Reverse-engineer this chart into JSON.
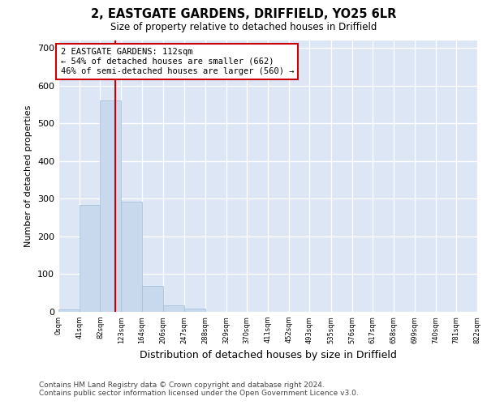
{
  "title": "2, EASTGATE GARDENS, DRIFFIELD, YO25 6LR",
  "subtitle": "Size of property relative to detached houses in Driffield",
  "xlabel": "Distribution of detached houses by size in Driffield",
  "ylabel": "Number of detached properties",
  "bar_edges": [
    0,
    41,
    82,
    123,
    164,
    206,
    247,
    288,
    329,
    370,
    411,
    452,
    493,
    535,
    576,
    617,
    658,
    699,
    740,
    781,
    822
  ],
  "bar_heights": [
    7,
    283,
    562,
    293,
    68,
    17,
    8,
    0,
    0,
    0,
    0,
    0,
    0,
    0,
    0,
    0,
    0,
    0,
    0,
    0
  ],
  "bar_color": "#c9d9ed",
  "bar_edgecolor": "#a0bcd8",
  "bg_color": "#dce6f5",
  "grid_color": "#ffffff",
  "vline_x": 112,
  "vline_color": "#cc0000",
  "annotation_text": "2 EASTGATE GARDENS: 112sqm\n← 54% of detached houses are smaller (662)\n46% of semi-detached houses are larger (560) →",
  "annotation_box_color": "#ffffff",
  "annotation_box_edgecolor": "#cc0000",
  "ylim": [
    0,
    720
  ],
  "yticks": [
    0,
    100,
    200,
    300,
    400,
    500,
    600,
    700
  ],
  "tick_labels": [
    "0sqm",
    "41sqm",
    "82sqm",
    "123sqm",
    "164sqm",
    "206sqm",
    "247sqm",
    "288sqm",
    "329sqm",
    "370sqm",
    "411sqm",
    "452sqm",
    "493sqm",
    "535sqm",
    "576sqm",
    "617sqm",
    "658sqm",
    "699sqm",
    "740sqm",
    "781sqm",
    "822sqm"
  ],
  "footer_line1": "Contains HM Land Registry data © Crown copyright and database right 2024.",
  "footer_line2": "Contains public sector information licensed under the Open Government Licence v3.0."
}
